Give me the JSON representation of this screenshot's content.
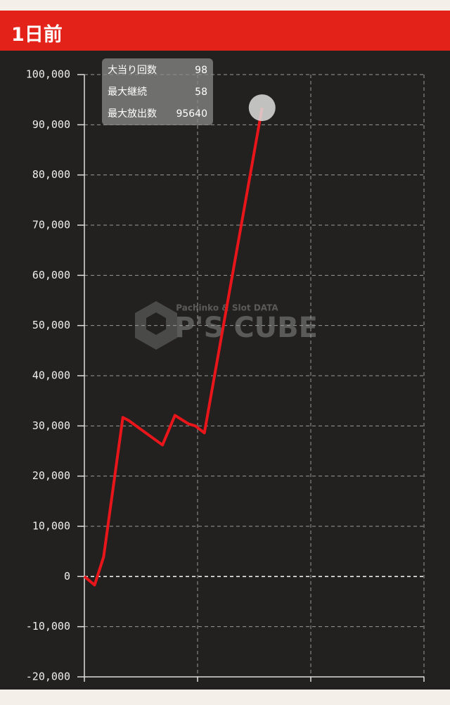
{
  "header": {
    "title": "1日前"
  },
  "chart_data": {
    "type": "line",
    "x": [
      0,
      0.09,
      0.17,
      0.34,
      0.39,
      0.69,
      0.8,
      0.92,
      0.98,
      1.06,
      1.57
    ],
    "series": [
      {
        "name": null,
        "color": "#e8161a",
        "values": [
          0,
          -1700,
          3900,
          31700,
          31100,
          26200,
          32100,
          30400,
          30000,
          28600,
          93400
        ]
      }
    ],
    "xlim": [
      0,
      3
    ],
    "xgrid": [
      1,
      2,
      3
    ],
    "ylim": [
      -20000,
      100000
    ],
    "yticks": [
      {
        "value": -20000,
        "label": "-20,000"
      },
      {
        "value": -10000,
        "label": "-10,000"
      },
      0,
      {
        "value": 10000,
        "label": "10,000"
      },
      {
        "value": 20000,
        "label": "20,000"
      },
      {
        "value": 30000,
        "label": "30,000"
      },
      {
        "value": 40000,
        "label": "40,000"
      },
      {
        "value": 50000,
        "label": "50,000"
      },
      {
        "value": 60000,
        "label": "60,000"
      },
      {
        "value": 70000,
        "label": "70,000"
      },
      {
        "value": 80000,
        "label": "80,000"
      },
      {
        "value": 90000,
        "label": "90,000"
      },
      {
        "value": 100000,
        "label": "100,000"
      }
    ],
    "grid": true,
    "stats": [
      {
        "label": "大当り回数",
        "value": 98
      },
      {
        "label": "最大継続",
        "value": 58
      },
      {
        "label": "最大放出数",
        "value": 95640
      }
    ],
    "watermark": {
      "brand": "P'S CUBE",
      "tagline": "Pachinko & Slot DATA"
    }
  }
}
